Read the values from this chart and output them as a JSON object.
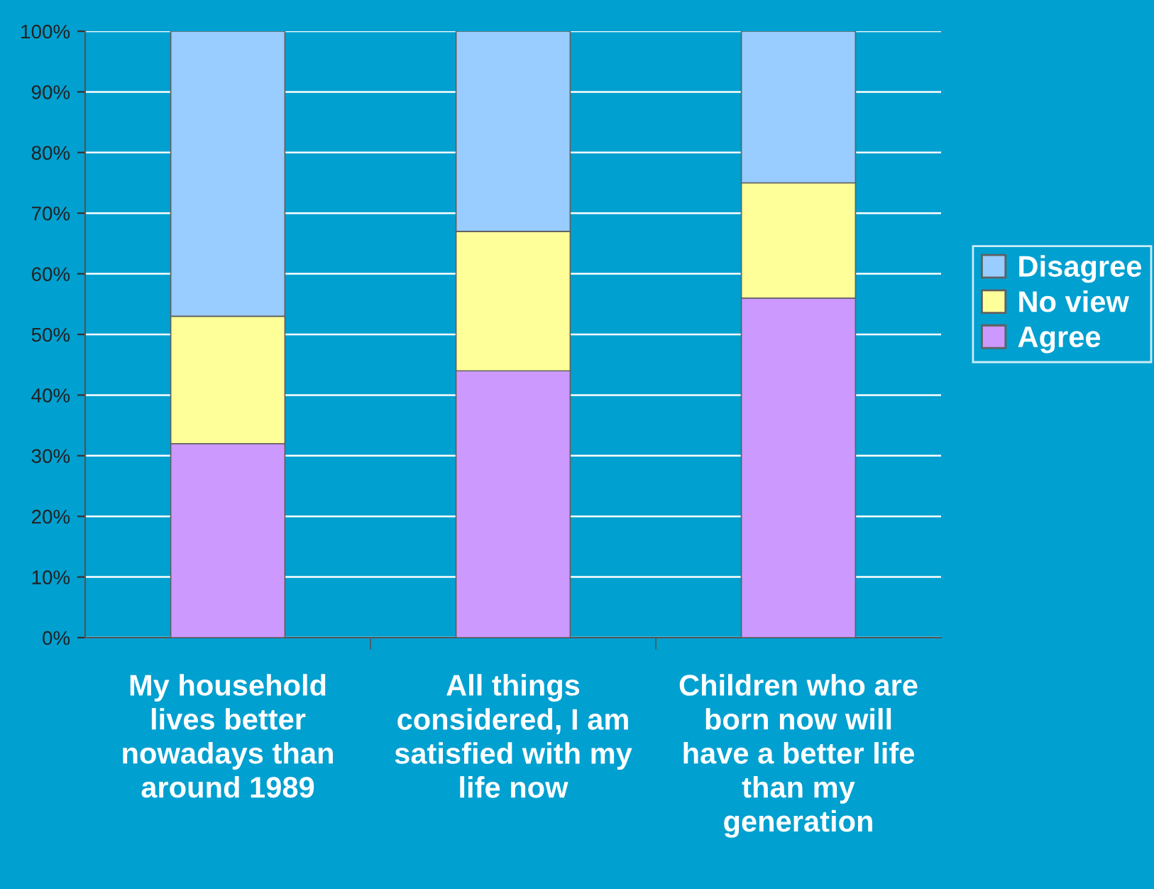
{
  "chart_data": {
    "type": "bar",
    "stacked": true,
    "categories": [
      "My household lives better nowadays than around 1989",
      "All things considered, I am satisfied with my life now",
      "Children who are born now will have a better life than my generation"
    ],
    "series": [
      {
        "name": "Agree",
        "color": "#cc99ff",
        "values": [
          32,
          44,
          56
        ]
      },
      {
        "name": "No view",
        "color": "#ffff99",
        "values": [
          21,
          23,
          19
        ]
      },
      {
        "name": "Disagree",
        "color": "#99ccff",
        "values": [
          47,
          33,
          25
        ]
      }
    ],
    "ylim": [
      0,
      100
    ],
    "yticks": [
      {
        "value": 0,
        "label": "0%"
      },
      {
        "value": 10,
        "label": "10%"
      },
      {
        "value": 20,
        "label": "20%"
      },
      {
        "value": 30,
        "label": "30%"
      },
      {
        "value": 40,
        "label": "40%"
      },
      {
        "value": 50,
        "label": "50%"
      },
      {
        "value": 60,
        "label": "60%"
      },
      {
        "value": 70,
        "label": "70%"
      },
      {
        "value": 80,
        "label": "80%"
      },
      {
        "value": 90,
        "label": "90%"
      },
      {
        "value": 100,
        "label": "100%"
      }
    ],
    "grid": "y",
    "legend": "right"
  }
}
